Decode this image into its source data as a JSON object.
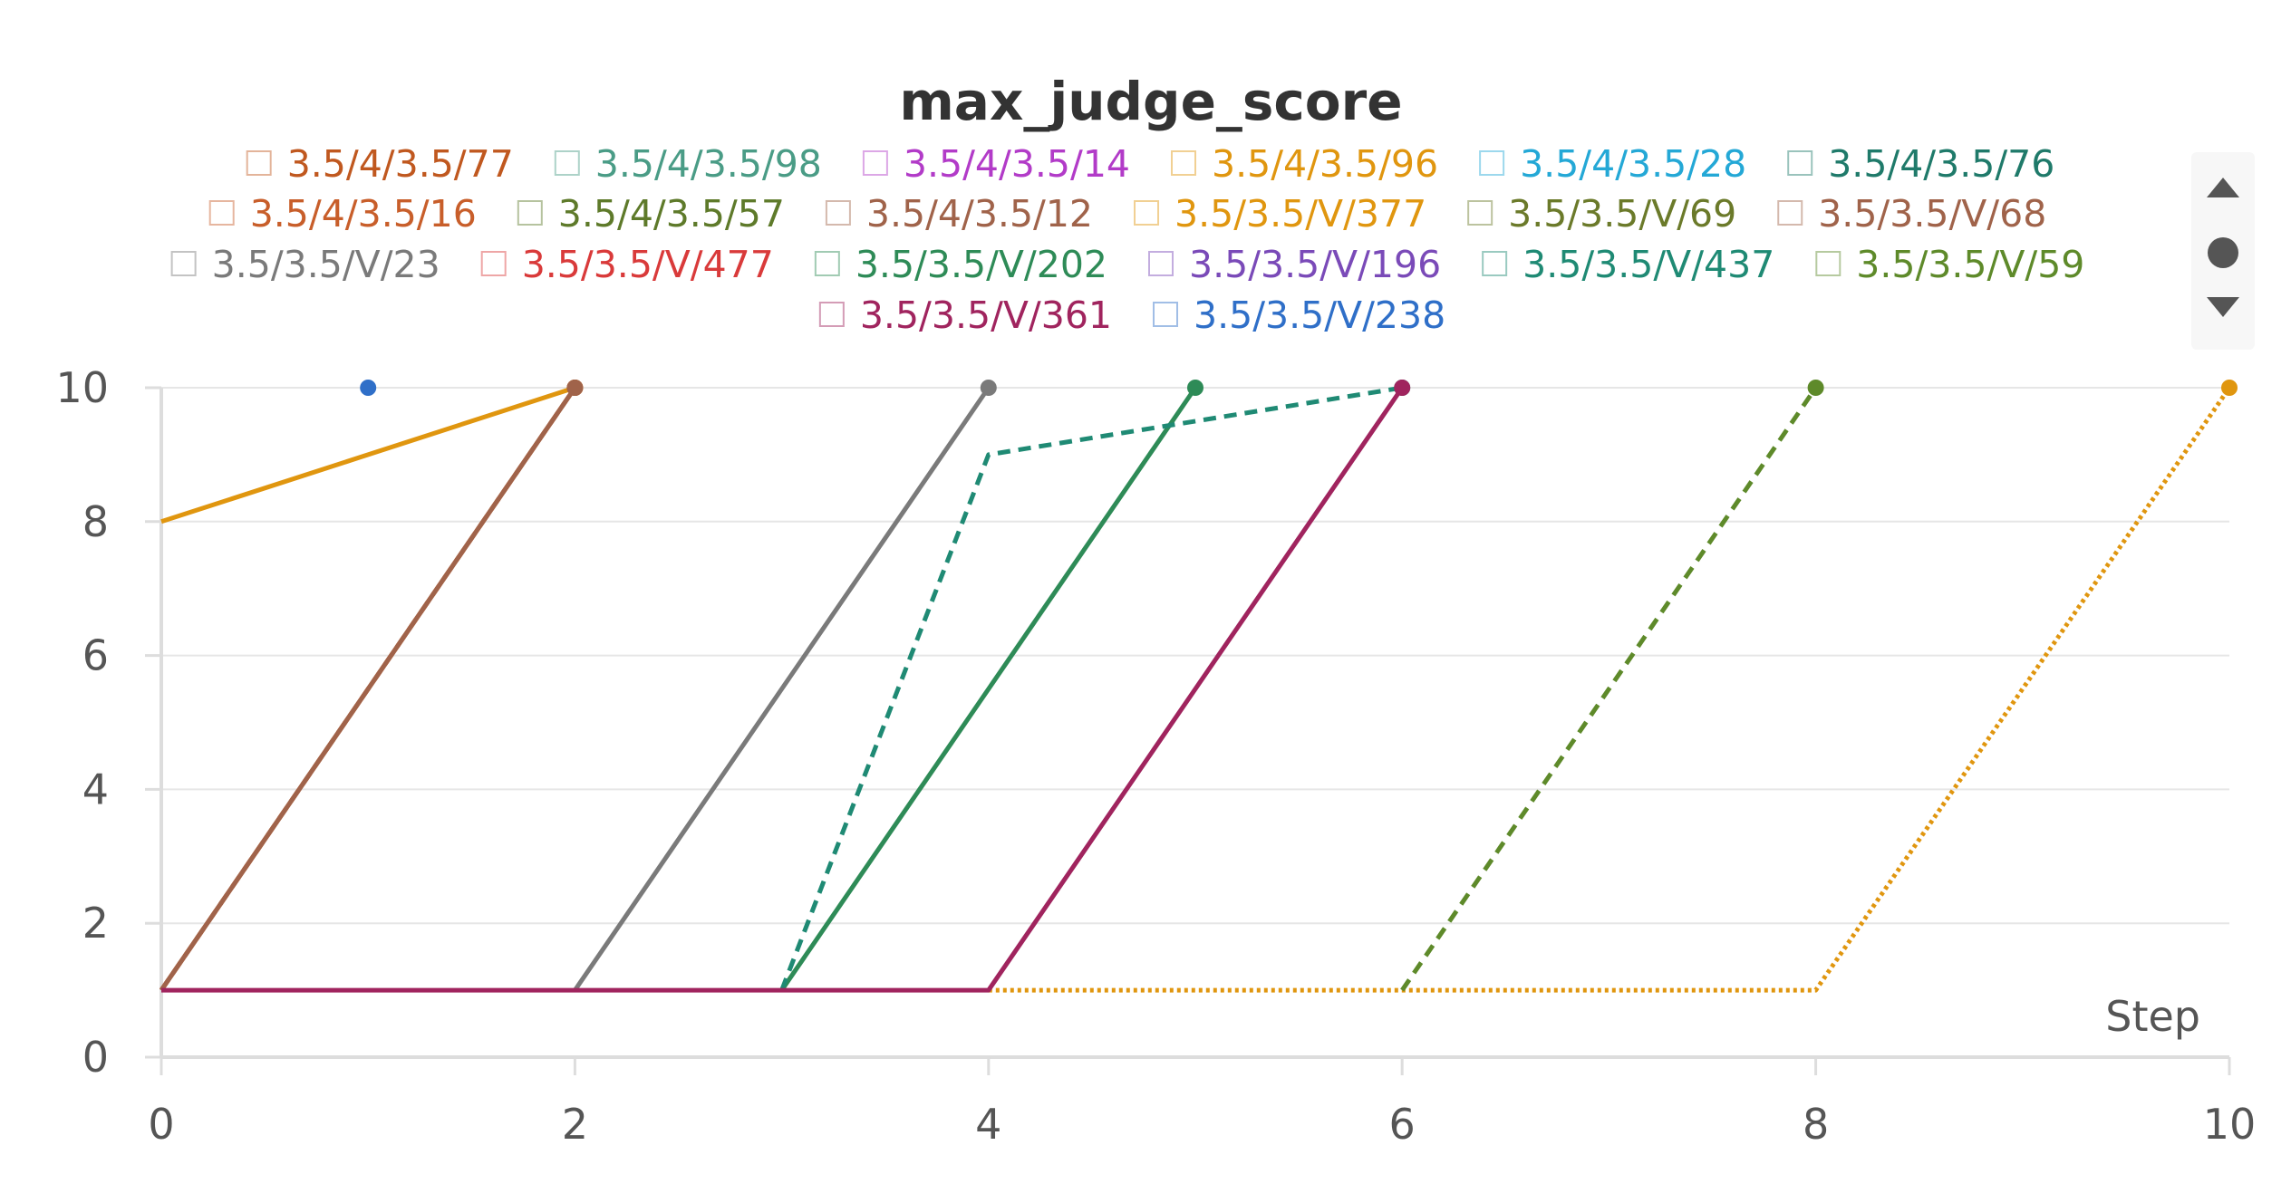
{
  "chart_data": {
    "type": "line",
    "title": "max_judge_score",
    "xlabel": "Step",
    "ylabel": "",
    "xlim": [
      0,
      10
    ],
    "ylim": [
      0,
      10
    ],
    "x_ticks": [
      0,
      2,
      4,
      6,
      8,
      10
    ],
    "y_ticks": [
      0,
      2,
      4,
      6,
      8,
      10
    ],
    "grid": true,
    "legend_position": "top",
    "series": [
      {
        "name": "3.5/4/3.5/77",
        "color": "#c0581f",
        "dash": "dashed",
        "x": [
          0,
          2
        ],
        "y": [
          1,
          10
        ]
      },
      {
        "name": "3.5/4/3.5/98",
        "color": "#4a9c86",
        "dash": "solid",
        "x": [],
        "y": []
      },
      {
        "name": "3.5/4/3.5/14",
        "color": "#b23bc8",
        "dash": "solid",
        "x": [],
        "y": []
      },
      {
        "name": "3.5/4/3.5/96",
        "color": "#e0960f",
        "dash": "solid",
        "x": [
          0,
          2
        ],
        "y": [
          8,
          10
        ]
      },
      {
        "name": "3.5/4/3.5/28",
        "color": "#24a8d6",
        "dash": "solid",
        "x": [],
        "y": []
      },
      {
        "name": "3.5/4/3.5/76",
        "color": "#1f7a6a",
        "dash": "solid",
        "x": [],
        "y": []
      },
      {
        "name": "3.5/4/3.5/16",
        "color": "#c85e2a",
        "dash": "solid",
        "x": [
          0,
          2
        ],
        "y": [
          1,
          10
        ]
      },
      {
        "name": "3.5/4/3.5/57",
        "color": "#5e7a2a",
        "dash": "solid",
        "x": [],
        "y": []
      },
      {
        "name": "3.5/4/3.5/12",
        "color": "#a0634a",
        "dash": "solid",
        "x": [
          0,
          2
        ],
        "y": [
          1,
          10
        ]
      },
      {
        "name": "3.5/3.5/V/377",
        "color": "#e0960f",
        "dash": "dotted",
        "x": [
          4,
          8,
          10
        ],
        "y": [
          1,
          1,
          10
        ]
      },
      {
        "name": "3.5/3.5/V/69",
        "color": "#6b7a2a",
        "dash": "solid",
        "x": [],
        "y": []
      },
      {
        "name": "3.5/3.5/V/68",
        "color": "#a0634a",
        "dash": "solid",
        "x": [],
        "y": []
      },
      {
        "name": "3.5/3.5/V/23",
        "color": "#7a7a7a",
        "dash": "solid",
        "x": [
          2,
          4
        ],
        "y": [
          1,
          10
        ]
      },
      {
        "name": "3.5/3.5/V/477",
        "color": "#d93a3a",
        "dash": "solid",
        "x": [],
        "y": []
      },
      {
        "name": "3.5/3.5/V/202",
        "color": "#2e8b57",
        "dash": "solid",
        "x": [
          3,
          5
        ],
        "y": [
          1,
          10
        ]
      },
      {
        "name": "3.5/3.5/V/196",
        "color": "#7a4ab8",
        "dash": "solid",
        "x": [],
        "y": []
      },
      {
        "name": "3.5/3.5/V/437",
        "color": "#1f8a74",
        "dash": "dashed",
        "x": [
          3,
          4,
          6
        ],
        "y": [
          1,
          9,
          10
        ]
      },
      {
        "name": "3.5/3.5/V/59",
        "color": "#5e8a2a",
        "dash": "dashed",
        "x": [
          6,
          8
        ],
        "y": [
          1,
          10
        ]
      },
      {
        "name": "3.5/3.5/V/361",
        "color": "#a0245e",
        "dash": "solid",
        "x": [
          0,
          4,
          6
        ],
        "y": [
          1,
          1,
          10
        ]
      },
      {
        "name": "3.5/3.5/V/238",
        "color": "#2f6fc8",
        "dash": "solid",
        "x": [
          1
        ],
        "y": [
          10
        ]
      }
    ]
  }
}
